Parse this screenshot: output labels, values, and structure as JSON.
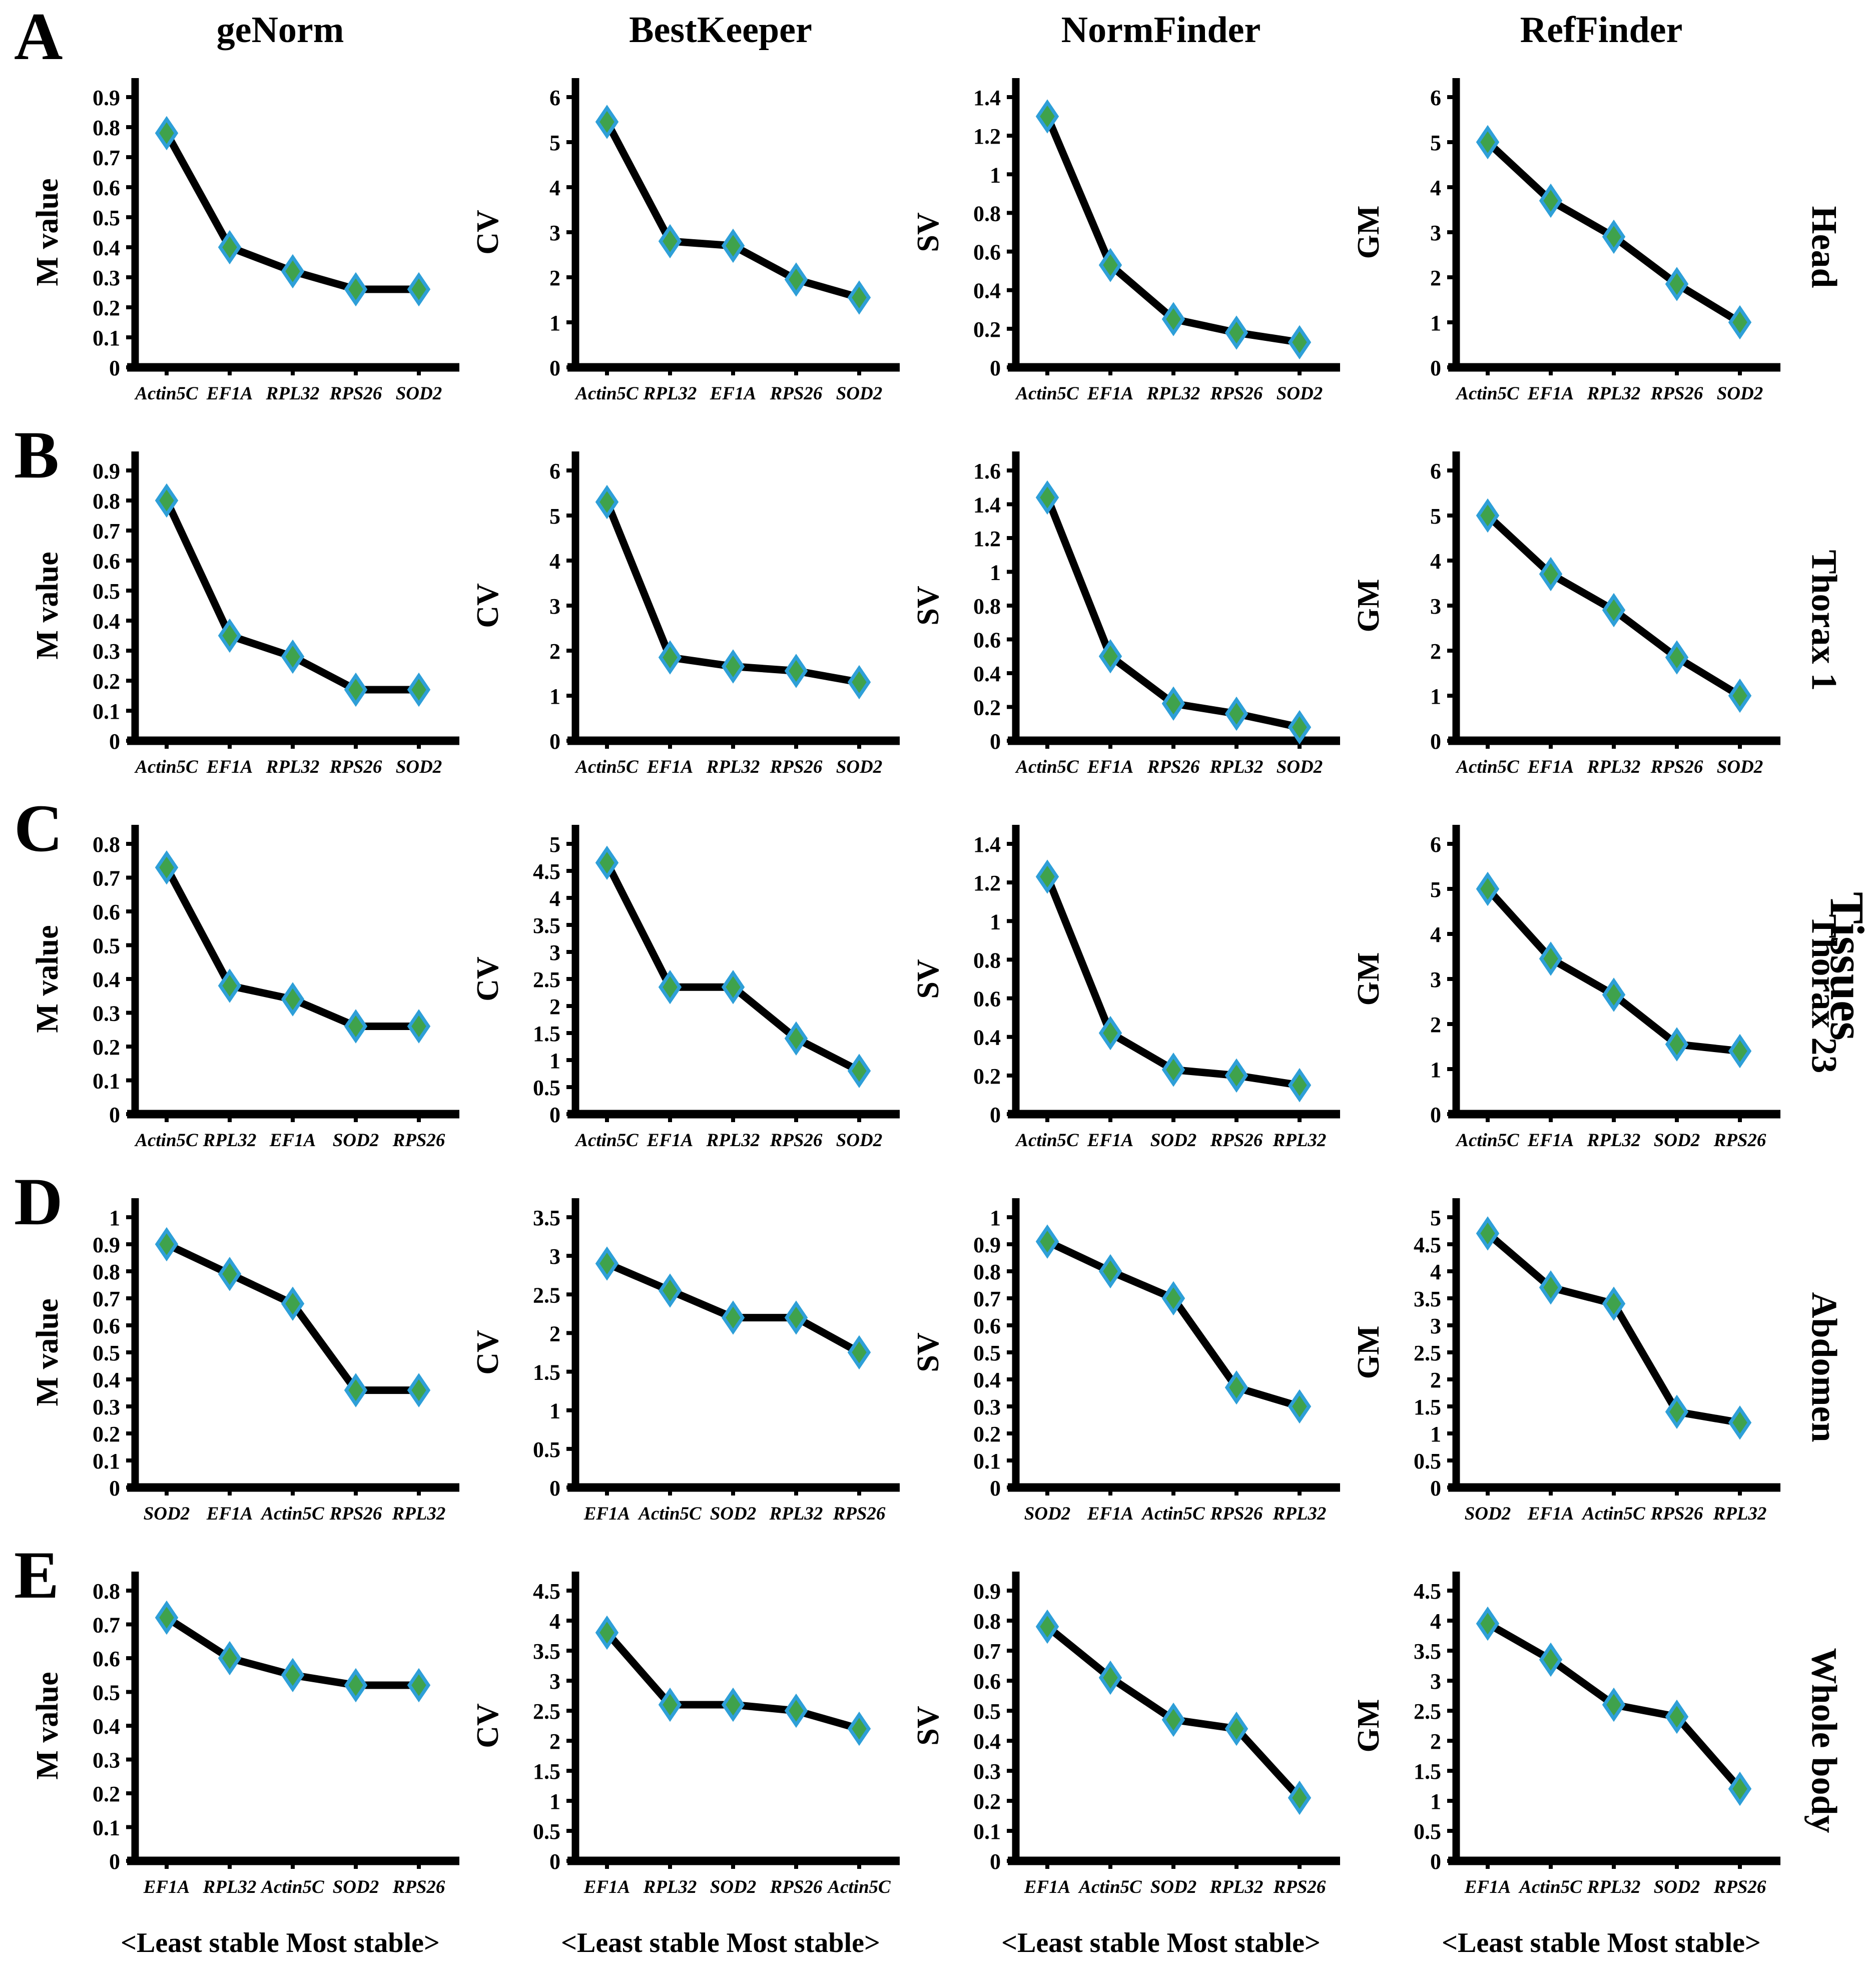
{
  "figure": {
    "column_headers": [
      "geNorm",
      "BestKeeper",
      "NormFinder",
      "RefFinder"
    ],
    "footer_label": "<Least stable Most stable>",
    "right_axis_label": "Tissues",
    "rows": [
      {
        "letter": "A",
        "tissue": "Head"
      },
      {
        "letter": "B",
        "tissue": "Thorax 1"
      },
      {
        "letter": "C",
        "tissue": "Thorax 23"
      },
      {
        "letter": "D",
        "tissue": "Abdomen"
      },
      {
        "letter": "E",
        "tissue": "Whole body"
      }
    ],
    "style": {
      "line_color": "#000000",
      "marker_fill": "#3FA24C",
      "marker_stroke": "#2E9FD8",
      "axis_color": "#000000"
    }
  },
  "chart_data": [
    {
      "type": "line",
      "tissue": "Head",
      "method": "geNorm",
      "ylabel": "M value",
      "ylim": [
        0,
        0.9
      ],
      "ytick": 0.1,
      "grid": false,
      "categories": [
        "Actin5C",
        "EF1A",
        "RPL32",
        "RPS26",
        "SOD2"
      ],
      "values": [
        0.78,
        0.4,
        0.32,
        0.26,
        0.26
      ]
    },
    {
      "type": "line",
      "tissue": "Head",
      "method": "BestKeeper",
      "ylabel": "CV",
      "ylim": [
        0,
        6
      ],
      "ytick": 1,
      "grid": false,
      "categories": [
        "Actin5C",
        "RPL32",
        "EF1A",
        "RPS26",
        "SOD2"
      ],
      "values": [
        5.45,
        2.8,
        2.7,
        1.95,
        1.55
      ]
    },
    {
      "type": "line",
      "tissue": "Head",
      "method": "NormFinder",
      "ylabel": "SV",
      "ylim": [
        0,
        1.4
      ],
      "ytick": 0.2,
      "grid": false,
      "categories": [
        "Actin5C",
        "EF1A",
        "RPL32",
        "RPS26",
        "SOD2"
      ],
      "values": [
        1.3,
        0.53,
        0.25,
        0.18,
        0.13
      ]
    },
    {
      "type": "line",
      "tissue": "Head",
      "method": "RefFinder",
      "ylabel": "GM",
      "ylim": [
        0,
        6
      ],
      "ytick": 1,
      "grid": false,
      "categories": [
        "Actin5C",
        "EF1A",
        "RPL32",
        "RPS26",
        "SOD2"
      ],
      "values": [
        5.0,
        3.7,
        2.9,
        1.85,
        1.0
      ]
    },
    {
      "type": "line",
      "tissue": "Thorax 1",
      "method": "geNorm",
      "ylabel": "M value",
      "ylim": [
        0,
        0.9
      ],
      "ytick": 0.1,
      "grid": false,
      "categories": [
        "Actin5C",
        "EF1A",
        "RPL32",
        "RPS26",
        "SOD2"
      ],
      "values": [
        0.8,
        0.35,
        0.28,
        0.17,
        0.17
      ]
    },
    {
      "type": "line",
      "tissue": "Thorax 1",
      "method": "BestKeeper",
      "ylabel": "CV",
      "ylim": [
        0,
        6
      ],
      "ytick": 1,
      "grid": false,
      "categories": [
        "Actin5C",
        "EF1A",
        "RPL32",
        "RPS26",
        "SOD2"
      ],
      "values": [
        5.3,
        1.85,
        1.65,
        1.55,
        1.3
      ]
    },
    {
      "type": "line",
      "tissue": "Thorax 1",
      "method": "NormFinder",
      "ylabel": "SV",
      "ylim": [
        0,
        1.6
      ],
      "ytick": 0.2,
      "grid": false,
      "categories": [
        "Actin5C",
        "EF1A",
        "RPS26",
        "RPL32",
        "SOD2"
      ],
      "values": [
        1.44,
        0.5,
        0.22,
        0.16,
        0.08
      ]
    },
    {
      "type": "line",
      "tissue": "Thorax 1",
      "method": "RefFinder",
      "ylabel": "GM",
      "ylim": [
        0,
        6
      ],
      "ytick": 1,
      "grid": false,
      "categories": [
        "Actin5C",
        "EF1A",
        "RPL32",
        "RPS26",
        "SOD2"
      ],
      "values": [
        5.0,
        3.7,
        2.9,
        1.85,
        1.0
      ]
    },
    {
      "type": "line",
      "tissue": "Thorax 23",
      "method": "geNorm",
      "ylabel": "M value",
      "ylim": [
        0,
        0.8
      ],
      "ytick": 0.1,
      "grid": false,
      "categories": [
        "Actin5C",
        "RPL32",
        "EF1A",
        "SOD2",
        "RPS26"
      ],
      "values": [
        0.73,
        0.38,
        0.34,
        0.26,
        0.26
      ]
    },
    {
      "type": "line",
      "tissue": "Thorax 23",
      "method": "BestKeeper",
      "ylabel": "CV",
      "ylim": [
        0,
        5
      ],
      "ytick": 0.5,
      "grid": false,
      "categories": [
        "Actin5C",
        "EF1A",
        "RPL32",
        "RPS26",
        "SOD2"
      ],
      "values": [
        4.65,
        2.35,
        2.35,
        1.4,
        0.8
      ]
    },
    {
      "type": "line",
      "tissue": "Thorax 23",
      "method": "NormFinder",
      "ylabel": "SV",
      "ylim": [
        0,
        1.4
      ],
      "ytick": 0.2,
      "grid": false,
      "categories": [
        "Actin5C",
        "EF1A",
        "SOD2",
        "RPS26",
        "RPL32"
      ],
      "values": [
        1.23,
        0.42,
        0.23,
        0.2,
        0.15
      ]
    },
    {
      "type": "line",
      "tissue": "Thorax 23",
      "method": "RefFinder",
      "ylabel": "GM",
      "ylim": [
        0,
        6
      ],
      "ytick": 1,
      "grid": false,
      "categories": [
        "Actin5C",
        "EF1A",
        "RPL32",
        "SOD2",
        "RPS26"
      ],
      "values": [
        5.0,
        3.45,
        2.65,
        1.55,
        1.4
      ]
    },
    {
      "type": "line",
      "tissue": "Abdomen",
      "method": "geNorm",
      "ylabel": "M value",
      "ylim": [
        0,
        1
      ],
      "ytick": 0.1,
      "grid": false,
      "categories": [
        "SOD2",
        "EF1A",
        "Actin5C",
        "RPS26",
        "RPL32"
      ],
      "values": [
        0.9,
        0.79,
        0.68,
        0.36,
        0.36
      ]
    },
    {
      "type": "line",
      "tissue": "Abdomen",
      "method": "BestKeeper",
      "ylabel": "CV",
      "ylim": [
        0,
        3.5
      ],
      "ytick": 0.5,
      "grid": false,
      "categories": [
        "EF1A",
        "Actin5C",
        "SOD2",
        "RPL32",
        "RPS26"
      ],
      "values": [
        2.9,
        2.55,
        2.2,
        2.2,
        1.75
      ]
    },
    {
      "type": "line",
      "tissue": "Abdomen",
      "method": "NormFinder",
      "ylabel": "SV",
      "ylim": [
        0,
        1
      ],
      "ytick": 0.1,
      "grid": false,
      "categories": [
        "SOD2",
        "EF1A",
        "Actin5C",
        "RPS26",
        "RPL32"
      ],
      "values": [
        0.91,
        0.8,
        0.7,
        0.37,
        0.3
      ]
    },
    {
      "type": "line",
      "tissue": "Abdomen",
      "method": "RefFinder",
      "ylabel": "GM",
      "ylim": [
        0,
        5
      ],
      "ytick": 0.5,
      "grid": false,
      "categories": [
        "SOD2",
        "EF1A",
        "Actin5C",
        "RPS26",
        "RPL32"
      ],
      "values": [
        4.7,
        3.7,
        3.4,
        1.4,
        1.2
      ]
    },
    {
      "type": "line",
      "tissue": "Whole body",
      "method": "geNorm",
      "ylabel": "M value",
      "ylim": [
        0,
        0.8
      ],
      "ytick": 0.1,
      "grid": false,
      "categories": [
        "EF1A",
        "RPL32",
        "Actin5C",
        "SOD2",
        "RPS26"
      ],
      "values": [
        0.72,
        0.6,
        0.55,
        0.52,
        0.52
      ]
    },
    {
      "type": "line",
      "tissue": "Whole body",
      "method": "BestKeeper",
      "ylabel": "CV",
      "ylim": [
        0,
        4.5
      ],
      "ytick": 0.5,
      "grid": false,
      "categories": [
        "EF1A",
        "RPL32",
        "SOD2",
        "RPS26",
        "Actin5C"
      ],
      "values": [
        3.8,
        2.6,
        2.6,
        2.5,
        2.2
      ]
    },
    {
      "type": "line",
      "tissue": "Whole body",
      "method": "NormFinder",
      "ylabel": "SV",
      "ylim": [
        0,
        0.9
      ],
      "ytick": 0.1,
      "grid": false,
      "categories": [
        "EF1A",
        "Actin5C",
        "SOD2",
        "RPL32",
        "RPS26"
      ],
      "values": [
        0.78,
        0.61,
        0.47,
        0.44,
        0.21
      ]
    },
    {
      "type": "line",
      "tissue": "Whole body",
      "method": "RefFinder",
      "ylabel": "GM",
      "ylim": [
        0,
        4.5
      ],
      "ytick": 0.5,
      "grid": false,
      "categories": [
        "EF1A",
        "Actin5C",
        "RPL32",
        "SOD2",
        "RPS26"
      ],
      "values": [
        3.95,
        3.35,
        2.6,
        2.4,
        1.2
      ]
    }
  ]
}
